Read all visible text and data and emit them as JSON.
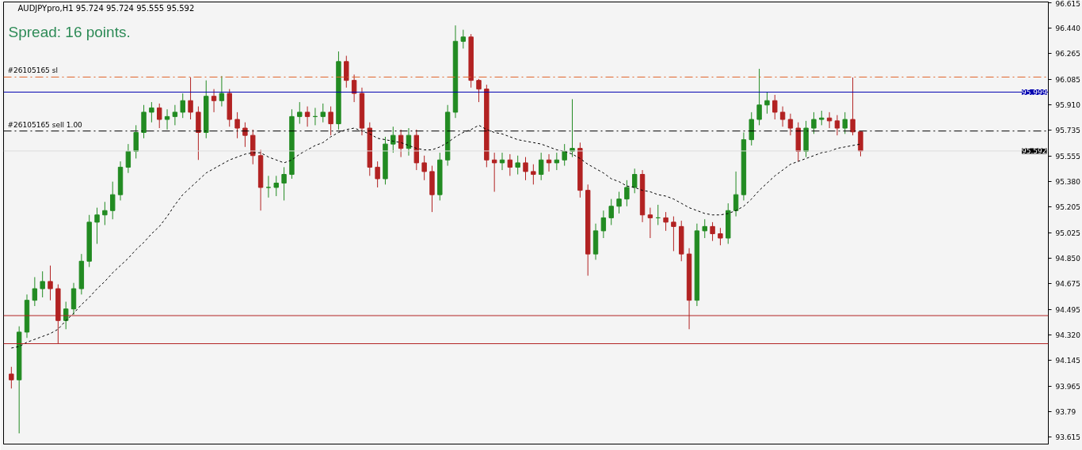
{
  "chart_data": {
    "type": "candlestick",
    "title": "AUDJPYpro,H1  95.724 95.724 95.555 95.592",
    "annotations": [
      "Spread: 16 points."
    ],
    "categories": [
      null,
      null,
      null,
      null,
      null,
      null,
      null,
      null,
      null,
      null,
      null,
      null,
      null,
      null,
      null,
      null,
      null,
      null,
      null,
      null,
      null,
      null,
      null,
      null,
      null,
      null,
      null,
      null,
      null,
      null,
      null,
      null,
      null,
      null,
      null,
      null,
      null,
      null,
      null,
      null,
      null,
      null,
      null,
      null,
      null,
      null,
      null,
      null,
      null,
      null,
      null,
      null,
      null,
      null,
      null,
      null,
      null,
      null,
      null,
      null,
      null,
      null,
      null,
      null,
      null,
      null,
      null,
      null,
      null,
      null,
      null,
      null,
      null,
      null,
      null,
      null,
      null,
      null,
      null,
      null,
      null,
      null,
      null,
      null,
      null,
      null,
      null,
      null,
      null,
      null,
      null,
      null,
      null,
      null,
      null,
      null,
      null,
      null,
      null,
      null,
      null,
      null,
      null,
      null,
      null,
      null,
      null,
      null,
      null,
      null
    ],
    "ohlc": [
      [
        94.05,
        94.1,
        93.95,
        94.01
      ],
      [
        94.01,
        94.38,
        93.64,
        94.34
      ],
      [
        94.34,
        94.6,
        94.3,
        94.56
      ],
      [
        94.56,
        94.72,
        94.52,
        94.64
      ],
      [
        94.64,
        94.76,
        94.58,
        94.69
      ],
      [
        94.69,
        94.8,
        94.56,
        94.64
      ],
      [
        94.64,
        94.67,
        94.26,
        94.42
      ],
      [
        94.42,
        94.55,
        94.36,
        94.5
      ],
      [
        94.5,
        94.68,
        94.46,
        94.64
      ],
      [
        94.64,
        94.88,
        94.6,
        94.83
      ],
      [
        94.83,
        95.15,
        94.79,
        95.1
      ],
      [
        95.1,
        95.2,
        94.95,
        95.15
      ],
      [
        95.15,
        95.24,
        95.08,
        95.18
      ],
      [
        95.18,
        95.38,
        95.12,
        95.29
      ],
      [
        95.29,
        95.52,
        95.25,
        95.48
      ],
      [
        95.48,
        95.64,
        95.44,
        95.59
      ],
      [
        95.59,
        95.77,
        95.54,
        95.72
      ],
      [
        95.72,
        95.91,
        95.68,
        95.86
      ],
      [
        95.86,
        95.93,
        95.79,
        95.89
      ],
      [
        95.89,
        95.92,
        95.75,
        95.81
      ],
      [
        95.81,
        95.88,
        95.74,
        95.83
      ],
      [
        95.83,
        95.91,
        95.77,
        95.86
      ],
      [
        95.86,
        95.99,
        95.82,
        95.94
      ],
      [
        95.94,
        96.1,
        95.81,
        95.86
      ],
      [
        95.86,
        95.9,
        95.53,
        95.72
      ],
      [
        95.72,
        96.08,
        95.68,
        95.97
      ],
      [
        95.97,
        96.02,
        95.86,
        95.94
      ],
      [
        95.94,
        96.11,
        95.9,
        95.99
      ],
      [
        95.99,
        96.02,
        95.76,
        95.81
      ],
      [
        95.81,
        95.86,
        95.68,
        95.75
      ],
      [
        95.75,
        95.79,
        95.62,
        95.7
      ],
      [
        95.7,
        95.74,
        95.5,
        95.56
      ],
      [
        95.56,
        95.6,
        95.18,
        95.34
      ],
      [
        95.34,
        95.42,
        95.27,
        95.34
      ],
      [
        95.34,
        95.42,
        95.28,
        95.37
      ],
      [
        95.37,
        95.48,
        95.25,
        95.43
      ],
      [
        95.43,
        95.88,
        95.4,
        95.83
      ],
      [
        95.83,
        95.93,
        95.78,
        95.86
      ],
      [
        95.86,
        95.9,
        95.76,
        95.83
      ],
      [
        95.83,
        95.89,
        95.77,
        95.83
      ],
      [
        95.83,
        95.92,
        95.79,
        95.86
      ],
      [
        95.86,
        95.9,
        95.7,
        95.78
      ],
      [
        95.78,
        96.28,
        95.74,
        96.21
      ],
      [
        96.21,
        96.25,
        96.03,
        96.08
      ],
      [
        96.08,
        96.12,
        95.93,
        95.99
      ],
      [
        95.99,
        96.03,
        95.7,
        95.75
      ],
      [
        95.75,
        95.79,
        95.42,
        95.48
      ],
      [
        95.48,
        95.52,
        95.34,
        95.4
      ],
      [
        95.4,
        95.69,
        95.36,
        95.64
      ],
      [
        95.64,
        95.76,
        95.58,
        95.7
      ],
      [
        95.7,
        95.74,
        95.55,
        95.61
      ],
      [
        95.61,
        95.75,
        95.56,
        95.7
      ],
      [
        95.7,
        95.74,
        95.46,
        95.51
      ],
      [
        95.51,
        95.56,
        95.39,
        95.45
      ],
      [
        95.45,
        95.49,
        95.17,
        95.29
      ],
      [
        95.29,
        95.58,
        95.25,
        95.53
      ],
      [
        95.53,
        95.91,
        95.49,
        95.86
      ],
      [
        95.86,
        96.46,
        95.82,
        96.35
      ],
      [
        96.35,
        96.43,
        96.3,
        96.38
      ],
      [
        96.38,
        96.4,
        96.03,
        96.08
      ],
      [
        96.08,
        96.09,
        95.93,
        96.02
      ],
      [
        96.02,
        96.05,
        95.48,
        95.53
      ],
      [
        95.53,
        95.58,
        95.31,
        95.51
      ],
      [
        95.51,
        95.58,
        95.46,
        95.53
      ],
      [
        95.53,
        95.57,
        95.42,
        95.48
      ],
      [
        95.48,
        95.56,
        95.43,
        95.51
      ],
      [
        95.51,
        95.55,
        95.39,
        95.45
      ],
      [
        95.45,
        95.5,
        95.36,
        95.43
      ],
      [
        95.43,
        95.58,
        95.39,
        95.53
      ],
      [
        95.53,
        95.57,
        95.45,
        95.51
      ],
      [
        95.51,
        95.58,
        95.46,
        95.53
      ],
      [
        95.53,
        95.64,
        95.49,
        95.59
      ],
      [
        95.59,
        95.95,
        95.55,
        95.61
      ],
      [
        95.61,
        95.65,
        95.27,
        95.32
      ],
      [
        95.32,
        95.36,
        94.73,
        94.88
      ],
      [
        94.88,
        95.09,
        94.84,
        95.04
      ],
      [
        95.04,
        95.18,
        94.99,
        95.13
      ],
      [
        95.13,
        95.26,
        95.08,
        95.21
      ],
      [
        95.21,
        95.31,
        95.16,
        95.26
      ],
      [
        95.26,
        95.39,
        95.21,
        95.34
      ],
      [
        95.34,
        95.47,
        95.3,
        95.43
      ],
      [
        95.43,
        95.46,
        95.1,
        95.15
      ],
      [
        95.15,
        95.2,
        94.99,
        95.13
      ],
      [
        95.13,
        95.22,
        95.08,
        95.13
      ],
      [
        95.13,
        95.17,
        95.04,
        95.1
      ],
      [
        95.1,
        95.14,
        94.9,
        95.07
      ],
      [
        95.07,
        95.11,
        94.83,
        94.88
      ],
      [
        94.88,
        94.92,
        94.36,
        94.56
      ],
      [
        94.56,
        95.09,
        94.52,
        95.04
      ],
      [
        95.04,
        95.12,
        94.99,
        95.07
      ],
      [
        95.07,
        95.1,
        94.97,
        95.02
      ],
      [
        95.02,
        95.06,
        94.94,
        94.99
      ],
      [
        94.99,
        95.23,
        94.95,
        95.18
      ],
      [
        95.18,
        95.45,
        95.14,
        95.29
      ],
      [
        95.29,
        95.72,
        95.25,
        95.67
      ],
      [
        95.67,
        95.86,
        95.63,
        95.81
      ],
      [
        95.81,
        96.16,
        95.77,
        95.91
      ],
      [
        95.91,
        96.0,
        95.85,
        95.94
      ],
      [
        95.94,
        95.98,
        95.81,
        95.86
      ],
      [
        95.86,
        95.9,
        95.76,
        95.81
      ],
      [
        95.81,
        95.85,
        95.7,
        95.75
      ],
      [
        95.75,
        95.79,
        95.52,
        95.59
      ],
      [
        95.59,
        95.8,
        95.55,
        95.75
      ],
      [
        95.75,
        95.86,
        95.71,
        95.81
      ],
      [
        95.81,
        95.87,
        95.77,
        95.82
      ],
      [
        95.82,
        95.86,
        95.75,
        95.8
      ],
      [
        95.8,
        95.84,
        95.7,
        95.75
      ],
      [
        95.75,
        95.86,
        95.71,
        95.81
      ],
      [
        95.81,
        96.1,
        95.7,
        95.724
      ],
      [
        95.724,
        95.724,
        95.555,
        95.592
      ]
    ],
    "colors": [
      "#b22222",
      "#228b22",
      "#228b22",
      "#228b22",
      "#228b22",
      "#b22222",
      "#b22222",
      "#228b22",
      "#228b22",
      "#228b22",
      "#228b22",
      "#228b22",
      "#228b22",
      "#228b22",
      "#228b22",
      "#228b22",
      "#228b22",
      "#228b22",
      "#228b22",
      "#b22222",
      "#228b22",
      "#228b22",
      "#228b22",
      "#b22222",
      "#b22222",
      "#228b22",
      "#b22222",
      "#228b22",
      "#b22222",
      "#b22222",
      "#b22222",
      "#b22222",
      "#b22222",
      "#228b22",
      "#228b22",
      "#228b22",
      "#228b22",
      "#228b22",
      "#b22222",
      "#228b22",
      "#228b22",
      "#b22222",
      "#228b22",
      "#b22222",
      "#b22222",
      "#b22222",
      "#b22222",
      "#b22222",
      "#228b22",
      "#228b22",
      "#b22222",
      "#228b22",
      "#b22222",
      "#b22222",
      "#b22222",
      "#228b22",
      "#228b22",
      "#228b22",
      "#228b22",
      "#b22222",
      "#b22222",
      "#b22222",
      "#b22222",
      "#228b22",
      "#b22222",
      "#228b22",
      "#b22222",
      "#b22222",
      "#228b22",
      "#b22222",
      "#228b22",
      "#228b22",
      "#228b22",
      "#b22222",
      "#b22222",
      "#228b22",
      "#228b22",
      "#228b22",
      "#228b22",
      "#228b22",
      "#228b22",
      "#b22222",
      "#b22222",
      "#228b22",
      "#b22222",
      "#b22222",
      "#b22222",
      "#b22222",
      "#228b22",
      "#228b22",
      "#b22222",
      "#b22222",
      "#228b22",
      "#228b22",
      "#228b22",
      "#228b22",
      "#228b22",
      "#228b22",
      "#b22222",
      "#b22222",
      "#b22222",
      "#b22222",
      "#228b22",
      "#228b22",
      "#228b22",
      "#b22222",
      "#b22222",
      "#228b22",
      "#b22222",
      "#b22222"
    ],
    "series": [
      {
        "type": "line",
        "color": "#000000",
        "line_style": "dotted",
        "values": [
          94.23,
          94.24,
          94.27,
          94.29,
          94.31,
          94.33,
          94.36,
          94.42,
          94.47,
          94.53,
          94.58,
          94.64,
          94.69,
          94.75,
          94.8,
          94.85,
          94.91,
          94.96,
          95.02,
          95.07,
          95.14,
          95.22,
          95.29,
          95.34,
          95.39,
          95.44,
          95.47,
          95.5,
          95.53,
          95.55,
          95.57,
          95.58,
          95.58,
          95.55,
          95.53,
          95.51,
          95.53,
          95.57,
          95.6,
          95.63,
          95.65,
          95.69,
          95.72,
          95.74,
          95.75,
          95.73,
          95.71,
          95.68,
          95.67,
          95.66,
          95.65,
          95.63,
          95.61,
          95.6,
          95.6,
          95.62,
          95.65,
          95.69,
          95.72,
          95.74,
          95.77,
          95.74,
          95.72,
          95.71,
          95.69,
          95.67,
          95.66,
          95.65,
          95.64,
          95.62,
          95.6,
          95.59,
          95.57,
          95.54,
          95.5,
          95.47,
          95.44,
          95.4,
          95.38,
          95.35,
          95.34,
          95.32,
          95.31,
          95.29,
          95.28,
          95.26,
          95.23,
          95.2,
          95.18,
          95.16,
          95.15,
          95.15,
          95.16,
          95.18,
          95.21,
          95.26,
          95.32,
          95.37,
          95.42,
          95.46,
          95.5,
          95.52,
          95.54,
          95.56,
          95.58,
          95.59,
          95.61,
          95.62,
          95.63,
          95.64
        ]
      }
    ],
    "ylim": [
      93.566,
      96.622
    ],
    "yticks": [
      96.615,
      {
        "value": 96.44,
        "label": "96.440"
      },
      96.265,
      96.085,
      {
        "value": 95.91,
        "label": "95.910"
      },
      95.735,
      95.555,
      {
        "value": 95.38,
        "label": "95.380"
      },
      95.205,
      95.025,
      {
        "value": 94.85,
        "label": "94.850"
      },
      94.675,
      94.495,
      {
        "value": 94.32,
        "label": "94.320"
      },
      94.145,
      93.965,
      93.79,
      93.615
    ],
    "ref_lines": [
      {
        "axis": "y",
        "value": 96.103,
        "label": "#26105165 sl",
        "color": "#e0632a",
        "line_style": "dashed"
      },
      {
        "axis": "y",
        "value": 95.999,
        "label": "95.999",
        "color": "#0000b0",
        "line_style": "solid"
      },
      {
        "axis": "y",
        "value": 95.73,
        "label": "#26105165 sell 1.00",
        "color": "#000000",
        "line_style": "dashed"
      },
      {
        "axis": "y",
        "value": 95.592,
        "label": "95.592",
        "color": "#dcdcdc",
        "line_style": "solid"
      },
      {
        "axis": "y",
        "value": 94.454,
        "color": "#b22222",
        "line_style": "solid"
      },
      {
        "axis": "y",
        "value": 94.26,
        "color": "#b22222",
        "line_style": "solid"
      }
    ],
    "tick_labels": "y",
    "grid": false
  }
}
